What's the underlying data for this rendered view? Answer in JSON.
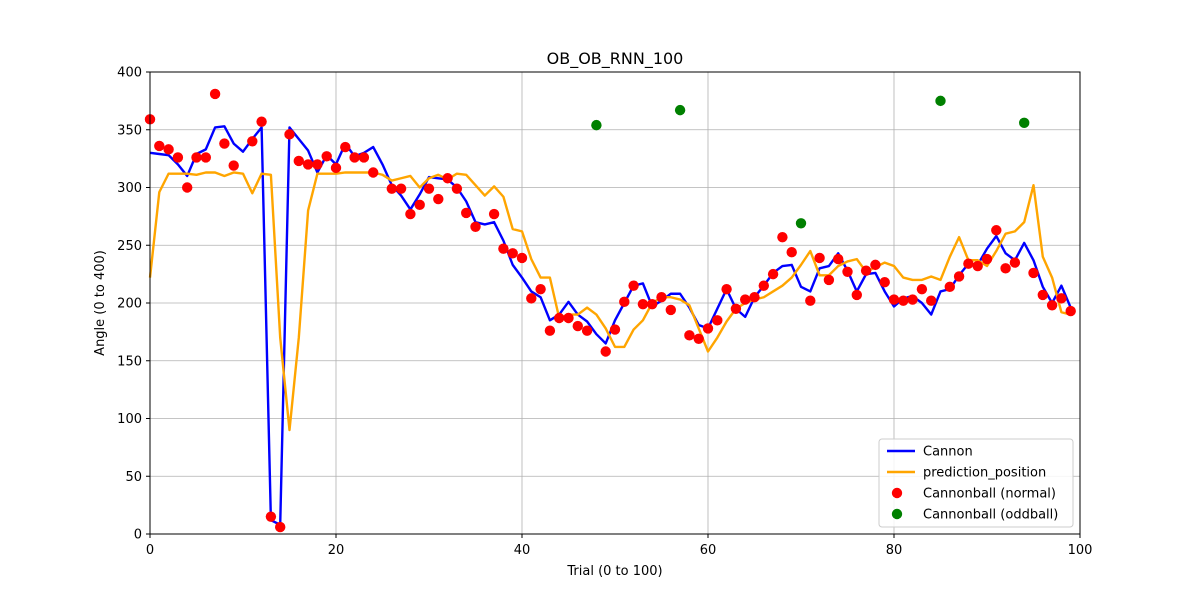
{
  "chart_data": {
    "type": "line",
    "title": "OB_OB_RNN_100",
    "xlabel": "Trial (0 to 100)",
    "ylabel": "Angle (0 to 400)",
    "xlim": [
      0,
      100
    ],
    "ylim": [
      0,
      400
    ],
    "xticks": [
      0,
      20,
      40,
      60,
      80,
      100
    ],
    "yticks": [
      0,
      50,
      100,
      150,
      200,
      250,
      300,
      350,
      400
    ],
    "grid": true,
    "legend_position": "bottom-right",
    "series": [
      {
        "name": "Cannon",
        "kind": "line",
        "color": "#0000ff",
        "x": [
          0,
          1,
          2,
          3,
          4,
          5,
          6,
          7,
          8,
          9,
          10,
          11,
          12,
          13,
          14,
          15,
          16,
          17,
          18,
          19,
          20,
          21,
          22,
          23,
          24,
          25,
          26,
          27,
          28,
          29,
          30,
          31,
          32,
          33,
          34,
          35,
          36,
          37,
          38,
          39,
          40,
          41,
          42,
          43,
          44,
          45,
          46,
          47,
          48,
          49,
          50,
          51,
          52,
          53,
          54,
          55,
          56,
          57,
          58,
          59,
          60,
          61,
          62,
          63,
          64,
          65,
          66,
          67,
          68,
          69,
          70,
          71,
          72,
          73,
          74,
          75,
          76,
          77,
          78,
          79,
          80,
          81,
          82,
          83,
          84,
          85,
          86,
          87,
          88,
          89,
          90,
          91,
          92,
          93,
          94,
          95,
          96,
          97,
          98,
          99
        ],
        "y": [
          330,
          329,
          328,
          320,
          310,
          329,
          333,
          352,
          353,
          338,
          331,
          342,
          352,
          12,
          8,
          352,
          342,
          332,
          313,
          328,
          320,
          338,
          327,
          330,
          335,
          320,
          302,
          293,
          281,
          294,
          309,
          308,
          307,
          300,
          288,
          270,
          268,
          270,
          254,
          233,
          222,
          210,
          205,
          185,
          190,
          201,
          190,
          184,
          173,
          165,
          185,
          200,
          215,
          217,
          197,
          202,
          208,
          208,
          196,
          181,
          178,
          195,
          212,
          195,
          188,
          205,
          215,
          226,
          232,
          233,
          214,
          210,
          230,
          232,
          243,
          228,
          210,
          225,
          226,
          210,
          197,
          204,
          206,
          200,
          190,
          210,
          212,
          224,
          234,
          233,
          247,
          258,
          243,
          237,
          252,
          237,
          214,
          200,
          215,
          196
        ]
      },
      {
        "name": "prediction_position",
        "kind": "line",
        "color": "#ffa500",
        "x": [
          0,
          1,
          2,
          3,
          4,
          5,
          6,
          7,
          8,
          9,
          10,
          11,
          12,
          13,
          14,
          15,
          16,
          17,
          18,
          19,
          20,
          21,
          22,
          23,
          24,
          25,
          26,
          27,
          28,
          29,
          30,
          31,
          32,
          33,
          34,
          35,
          36,
          37,
          38,
          39,
          40,
          41,
          42,
          43,
          44,
          45,
          46,
          47,
          48,
          49,
          50,
          51,
          52,
          53,
          54,
          55,
          56,
          57,
          58,
          59,
          60,
          61,
          62,
          63,
          64,
          65,
          66,
          67,
          68,
          69,
          70,
          71,
          72,
          73,
          74,
          75,
          76,
          77,
          78,
          79,
          80,
          81,
          82,
          83,
          84,
          85,
          86,
          87,
          88,
          89,
          90,
          91,
          92,
          93,
          94,
          95,
          96,
          97,
          98,
          99
        ],
        "y": [
          222,
          296,
          312,
          312,
          312,
          311,
          313,
          313,
          310,
          313,
          312,
          295,
          312,
          311,
          170,
          90,
          170,
          280,
          312,
          312,
          312,
          313,
          313,
          313,
          313,
          311,
          306,
          308,
          310,
          300,
          308,
          311,
          307,
          312,
          311,
          302,
          293,
          301,
          292,
          264,
          262,
          238,
          222,
          222,
          187,
          190,
          190,
          196,
          190,
          178,
          162,
          162,
          177,
          185,
          200,
          205,
          205,
          203,
          198,
          178,
          158,
          170,
          184,
          195,
          200,
          203,
          205,
          210,
          215,
          222,
          233,
          245,
          224,
          224,
          232,
          236,
          238,
          227,
          231,
          235,
          232,
          222,
          220,
          220,
          223,
          220,
          240,
          257,
          237,
          237,
          232,
          245,
          260,
          262,
          270,
          302,
          240,
          222,
          192,
          190
        ]
      },
      {
        "name": "Cannonball (normal)",
        "kind": "scatter",
        "color": "#ff0000",
        "x": [
          0,
          1,
          2,
          3,
          4,
          5,
          6,
          7,
          8,
          9,
          11,
          12,
          13,
          14,
          15,
          16,
          17,
          18,
          19,
          20,
          21,
          22,
          23,
          24,
          26,
          27,
          28,
          29,
          30,
          31,
          32,
          33,
          34,
          35,
          37,
          38,
          39,
          40,
          41,
          42,
          43,
          44,
          45,
          46,
          47,
          49,
          50,
          51,
          52,
          53,
          54,
          55,
          56,
          58,
          59,
          60,
          61,
          62,
          63,
          64,
          65,
          66,
          67,
          68,
          69,
          71,
          72,
          73,
          74,
          75,
          76,
          77,
          78,
          79,
          80,
          81,
          82,
          83,
          84,
          86,
          87,
          88,
          89,
          90,
          91,
          92,
          93,
          95,
          96,
          97,
          98,
          99
        ],
        "y": [
          359,
          336,
          333,
          326,
          300,
          326,
          326,
          381,
          338,
          319,
          340,
          357,
          15,
          6,
          346,
          323,
          320,
          320,
          327,
          317,
          335,
          326,
          326,
          313,
          299,
          299,
          277,
          285,
          299,
          290,
          308,
          299,
          278,
          266,
          277,
          247,
          243,
          239,
          204,
          212,
          176,
          187,
          187,
          180,
          176,
          158,
          177,
          201,
          215,
          199,
          199,
          205,
          194,
          172,
          169,
          178,
          185,
          212,
          195,
          203,
          205,
          215,
          225,
          257,
          244,
          202,
          239,
          220,
          238,
          227,
          207,
          228,
          233,
          218,
          203,
          202,
          203,
          212,
          202,
          214,
          223,
          234,
          232,
          238,
          263,
          230,
          235,
          226,
          207,
          198,
          204,
          193
        ]
      },
      {
        "name": "Cannonball (oddball)",
        "kind": "scatter",
        "color": "#008000",
        "x": [
          48,
          57,
          70,
          85,
          94
        ],
        "y": [
          354,
          367,
          269,
          375,
          356
        ]
      }
    ]
  }
}
